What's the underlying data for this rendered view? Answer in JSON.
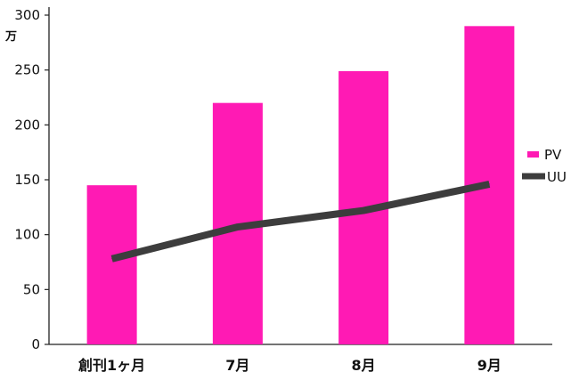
{
  "chart_data": {
    "type": "bar",
    "categories": [
      "創刊1ヶ月",
      "7月",
      "8月",
      "9月"
    ],
    "series": [
      {
        "name": "PV",
        "type": "bar",
        "values": [
          145,
          220,
          249,
          290
        ],
        "color": "#ff1ab4"
      },
      {
        "name": "UU",
        "type": "line",
        "values": [
          78,
          107,
          122,
          146
        ],
        "color": "#3d3d3d"
      }
    ],
    "ylim": [
      0,
      300
    ],
    "yticks": [
      0,
      50,
      100,
      150,
      200,
      250,
      300
    ],
    "yunit": "万",
    "grid": false,
    "legend": "right"
  }
}
